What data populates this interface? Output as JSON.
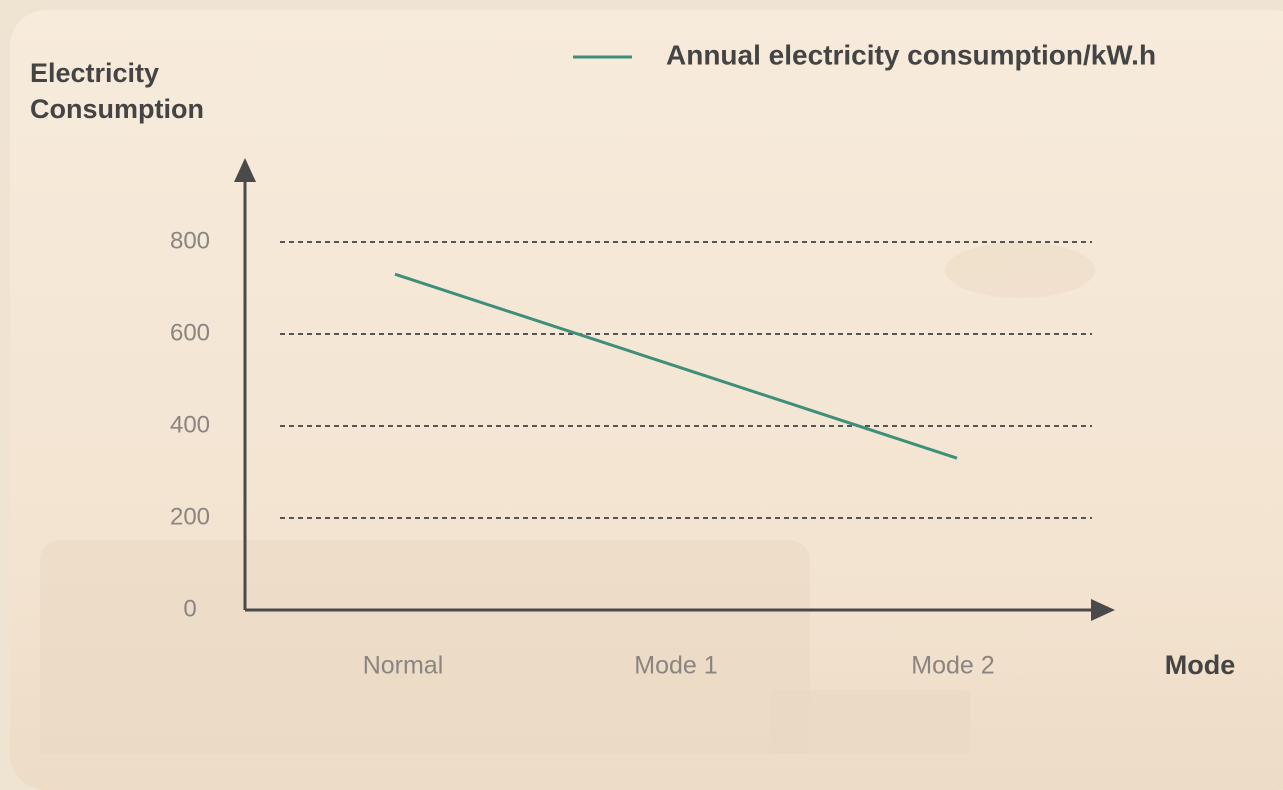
{
  "chart_data": {
    "type": "line",
    "y_label": "Electricity Consumption",
    "x_label": "Mode",
    "categories": [
      "Normal",
      "Mode 1",
      "Mode 2"
    ],
    "series": [
      {
        "name": "Annual electricity consumption/kW.h",
        "color": "#3e8f78",
        "values": [
          730,
          530,
          330
        ]
      }
    ],
    "ylim": [
      0,
      800
    ],
    "yticks": [
      0,
      200,
      400,
      600,
      800
    ],
    "grid": true
  }
}
